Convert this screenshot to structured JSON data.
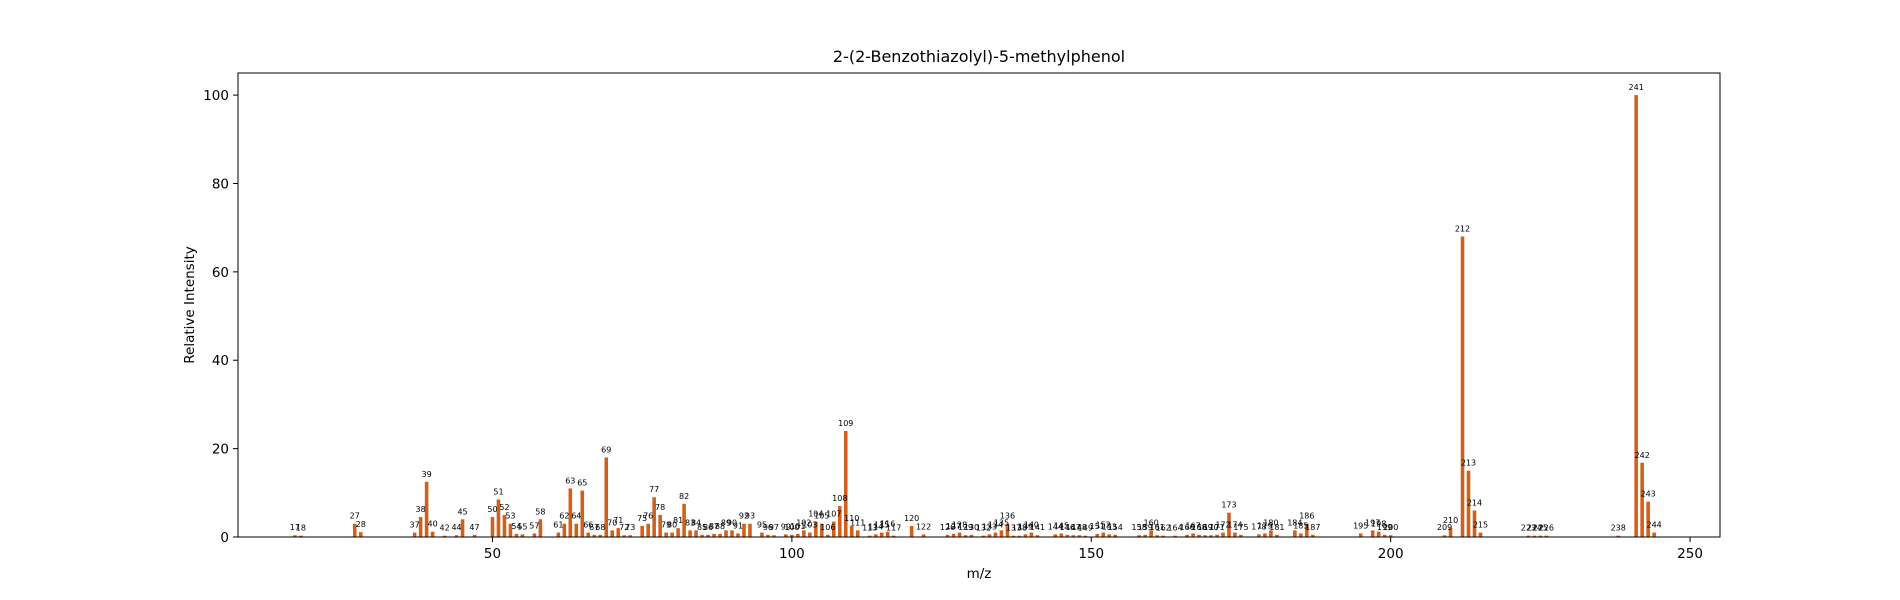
{
  "chart_data": {
    "type": "bar",
    "title": "2-(2-Benzothiazolyl)-5-methylphenol",
    "xlabel": "m/z",
    "ylabel": "Relative Intensity",
    "xlim": [
      7.5,
      255
    ],
    "ylim": [
      0,
      105
    ],
    "xticks": [
      50,
      100,
      150,
      200,
      250
    ],
    "yticks": [
      0,
      20,
      40,
      60,
      80,
      100
    ],
    "bar_color": "#d2601a",
    "peaks": [
      {
        "mz": 17,
        "intensity": 0.4,
        "label": "17"
      },
      {
        "mz": 18,
        "intensity": 0.3,
        "label": "18"
      },
      {
        "mz": 27,
        "intensity": 3.0,
        "label": "27"
      },
      {
        "mz": 28,
        "intensity": 1.1,
        "label": "28"
      },
      {
        "mz": 37,
        "intensity": 1.0,
        "label": "37"
      },
      {
        "mz": 38,
        "intensity": 4.5,
        "label": "38"
      },
      {
        "mz": 39,
        "intensity": 12.5,
        "label": "39"
      },
      {
        "mz": 40,
        "intensity": 1.2,
        "label": "40"
      },
      {
        "mz": 42,
        "intensity": 0.3,
        "label": "42"
      },
      {
        "mz": 44,
        "intensity": 0.4,
        "label": "44"
      },
      {
        "mz": 45,
        "intensity": 4.0,
        "label": "45"
      },
      {
        "mz": 47,
        "intensity": 0.5,
        "label": "47"
      },
      {
        "mz": 50,
        "intensity": 4.5,
        "label": "50"
      },
      {
        "mz": 51,
        "intensity": 8.5,
        "label": "51"
      },
      {
        "mz": 52,
        "intensity": 5.0,
        "label": "52"
      },
      {
        "mz": 53,
        "intensity": 3.0,
        "label": "53"
      },
      {
        "mz": 54,
        "intensity": 0.7,
        "label": "54"
      },
      {
        "mz": 55,
        "intensity": 0.6,
        "label": "55"
      },
      {
        "mz": 57,
        "intensity": 0.8,
        "label": "57"
      },
      {
        "mz": 58,
        "intensity": 4.0,
        "label": "58"
      },
      {
        "mz": 61,
        "intensity": 1.0,
        "label": "61"
      },
      {
        "mz": 62,
        "intensity": 3.0,
        "label": "62"
      },
      {
        "mz": 63,
        "intensity": 11.0,
        "label": "63"
      },
      {
        "mz": 64,
        "intensity": 3.0,
        "label": "64"
      },
      {
        "mz": 65,
        "intensity": 10.5,
        "label": "65"
      },
      {
        "mz": 66,
        "intensity": 1.0,
        "label": "66"
      },
      {
        "mz": 67,
        "intensity": 0.5,
        "label": "67"
      },
      {
        "mz": 68,
        "intensity": 0.5,
        "label": "68"
      },
      {
        "mz": 69,
        "intensity": 18.0,
        "label": "69"
      },
      {
        "mz": 70,
        "intensity": 1.5,
        "label": "70"
      },
      {
        "mz": 71,
        "intensity": 2.0,
        "label": "71"
      },
      {
        "mz": 72,
        "intensity": 0.4,
        "label": "72"
      },
      {
        "mz": 73,
        "intensity": 0.4,
        "label": "73"
      },
      {
        "mz": 75,
        "intensity": 2.5,
        "label": "75"
      },
      {
        "mz": 76,
        "intensity": 3.0,
        "label": "76"
      },
      {
        "mz": 77,
        "intensity": 9.0,
        "label": "77"
      },
      {
        "mz": 78,
        "intensity": 5.0,
        "label": "78"
      },
      {
        "mz": 79,
        "intensity": 1.0,
        "label": "79"
      },
      {
        "mz": 80,
        "intensity": 1.0,
        "label": "80"
      },
      {
        "mz": 81,
        "intensity": 2.0,
        "label": "81"
      },
      {
        "mz": 82,
        "intensity": 7.5,
        "label": "82"
      },
      {
        "mz": 83,
        "intensity": 1.5,
        "label": "83"
      },
      {
        "mz": 84,
        "intensity": 1.5,
        "label": "84"
      },
      {
        "mz": 85,
        "intensity": 0.5,
        "label": "85"
      },
      {
        "mz": 86,
        "intensity": 0.5,
        "label": "86"
      },
      {
        "mz": 87,
        "intensity": 0.7,
        "label": "87"
      },
      {
        "mz": 88,
        "intensity": 0.7,
        "label": "88"
      },
      {
        "mz": 89,
        "intensity": 1.5,
        "label": "89"
      },
      {
        "mz": 90,
        "intensity": 1.5,
        "label": "90"
      },
      {
        "mz": 91,
        "intensity": 0.8,
        "label": "91"
      },
      {
        "mz": 92,
        "intensity": 3.0,
        "label": "92"
      },
      {
        "mz": 93,
        "intensity": 3.0,
        "label": "93"
      },
      {
        "mz": 95,
        "intensity": 1.0,
        "label": "95"
      },
      {
        "mz": 96,
        "intensity": 0.5,
        "label": "96"
      },
      {
        "mz": 97,
        "intensity": 0.4,
        "label": "97"
      },
      {
        "mz": 99,
        "intensity": 0.6,
        "label": "99"
      },
      {
        "mz": 100,
        "intensity": 0.5,
        "label": "100"
      },
      {
        "mz": 101,
        "intensity": 0.7,
        "label": "101"
      },
      {
        "mz": 102,
        "intensity": 1.5,
        "label": "102"
      },
      {
        "mz": 103,
        "intensity": 1.0,
        "label": "103"
      },
      {
        "mz": 104,
        "intensity": 3.5,
        "label": "104"
      },
      {
        "mz": 105,
        "intensity": 3.0,
        "label": "105"
      },
      {
        "mz": 106,
        "intensity": 0.5,
        "label": "106"
      },
      {
        "mz": 107,
        "intensity": 3.5,
        "label": "107"
      },
      {
        "mz": 108,
        "intensity": 7.0,
        "label": "108"
      },
      {
        "mz": 109,
        "intensity": 24.0,
        "label": "109"
      },
      {
        "mz": 110,
        "intensity": 2.5,
        "label": "110"
      },
      {
        "mz": 111,
        "intensity": 1.5,
        "label": "111"
      },
      {
        "mz": 113,
        "intensity": 0.3,
        "label": "113"
      },
      {
        "mz": 114,
        "intensity": 0.6,
        "label": "114"
      },
      {
        "mz": 115,
        "intensity": 1.0,
        "label": "115"
      },
      {
        "mz": 116,
        "intensity": 1.2,
        "label": "116"
      },
      {
        "mz": 117,
        "intensity": 0.3,
        "label": "117"
      },
      {
        "mz": 120,
        "intensity": 2.5,
        "label": "120"
      },
      {
        "mz": 122,
        "intensity": 0.6,
        "label": "122"
      },
      {
        "mz": 126,
        "intensity": 0.5,
        "label": "126"
      },
      {
        "mz": 127,
        "intensity": 0.7,
        "label": "127"
      },
      {
        "mz": 128,
        "intensity": 1.0,
        "label": "128"
      },
      {
        "mz": 129,
        "intensity": 0.4,
        "label": "129"
      },
      {
        "mz": 130,
        "intensity": 0.5,
        "label": "130"
      },
      {
        "mz": 132,
        "intensity": 0.3,
        "label": "132"
      },
      {
        "mz": 133,
        "intensity": 0.6,
        "label": "133"
      },
      {
        "mz": 134,
        "intensity": 1.0,
        "label": "134"
      },
      {
        "mz": 135,
        "intensity": 1.5,
        "label": "135"
      },
      {
        "mz": 136,
        "intensity": 3.0,
        "label": "136"
      },
      {
        "mz": 137,
        "intensity": 0.3,
        "label": "137"
      },
      {
        "mz": 138,
        "intensity": 0.3,
        "label": "138"
      },
      {
        "mz": 139,
        "intensity": 0.6,
        "label": "139"
      },
      {
        "mz": 140,
        "intensity": 1.0,
        "label": "140"
      },
      {
        "mz": 141,
        "intensity": 0.4,
        "label": "141"
      },
      {
        "mz": 144,
        "intensity": 0.6,
        "label": "144"
      },
      {
        "mz": 145,
        "intensity": 0.8,
        "label": "145"
      },
      {
        "mz": 146,
        "intensity": 0.5,
        "label": "146"
      },
      {
        "mz": 147,
        "intensity": 0.4,
        "label": "147"
      },
      {
        "mz": 148,
        "intensity": 0.4,
        "label": "148"
      },
      {
        "mz": 149,
        "intensity": 0.3,
        "label": "149"
      },
      {
        "mz": 151,
        "intensity": 0.7,
        "label": "151"
      },
      {
        "mz": 152,
        "intensity": 1.0,
        "label": "152"
      },
      {
        "mz": 153,
        "intensity": 0.6,
        "label": "153"
      },
      {
        "mz": 154,
        "intensity": 0.5,
        "label": "154"
      },
      {
        "mz": 158,
        "intensity": 0.4,
        "label": "158"
      },
      {
        "mz": 159,
        "intensity": 0.5,
        "label": "159"
      },
      {
        "mz": 160,
        "intensity": 1.5,
        "label": "160"
      },
      {
        "mz": 161,
        "intensity": 0.4,
        "label": "161"
      },
      {
        "mz": 162,
        "intensity": 0.3,
        "label": "162"
      },
      {
        "mz": 164,
        "intensity": 0.3,
        "label": "164"
      },
      {
        "mz": 166,
        "intensity": 0.5,
        "label": "166"
      },
      {
        "mz": 167,
        "intensity": 0.8,
        "label": "167"
      },
      {
        "mz": 168,
        "intensity": 0.5,
        "label": "168"
      },
      {
        "mz": 169,
        "intensity": 0.4,
        "label": "169"
      },
      {
        "mz": 170,
        "intensity": 0.4,
        "label": "170"
      },
      {
        "mz": 171,
        "intensity": 0.5,
        "label": "171"
      },
      {
        "mz": 172,
        "intensity": 1.0,
        "label": "172"
      },
      {
        "mz": 173,
        "intensity": 5.5,
        "label": "173"
      },
      {
        "mz": 174,
        "intensity": 1.0,
        "label": "174"
      },
      {
        "mz": 175,
        "intensity": 0.5,
        "label": "175"
      },
      {
        "mz": 178,
        "intensity": 0.6,
        "label": "178"
      },
      {
        "mz": 179,
        "intensity": 0.8,
        "label": "179"
      },
      {
        "mz": 180,
        "intensity": 1.5,
        "label": "180"
      },
      {
        "mz": 181,
        "intensity": 0.5,
        "label": "181"
      },
      {
        "mz": 184,
        "intensity": 1.5,
        "label": "184"
      },
      {
        "mz": 185,
        "intensity": 0.8,
        "label": "185"
      },
      {
        "mz": 186,
        "intensity": 3.0,
        "label": "186"
      },
      {
        "mz": 187,
        "intensity": 0.5,
        "label": "187"
      },
      {
        "mz": 195,
        "intensity": 0.8,
        "label": "195"
      },
      {
        "mz": 197,
        "intensity": 1.5,
        "label": "197"
      },
      {
        "mz": 198,
        "intensity": 1.2,
        "label": "198"
      },
      {
        "mz": 199,
        "intensity": 0.5,
        "label": "199"
      },
      {
        "mz": 200,
        "intensity": 0.4,
        "label": "200"
      },
      {
        "mz": 209,
        "intensity": 0.4,
        "label": "209"
      },
      {
        "mz": 210,
        "intensity": 2.0,
        "label": "210"
      },
      {
        "mz": 212,
        "intensity": 68.0,
        "label": "212"
      },
      {
        "mz": 213,
        "intensity": 15.0,
        "label": "213"
      },
      {
        "mz": 214,
        "intensity": 6.0,
        "label": "214"
      },
      {
        "mz": 215,
        "intensity": 1.0,
        "label": "215"
      },
      {
        "mz": 223,
        "intensity": 0.3,
        "label": "223"
      },
      {
        "mz": 224,
        "intensity": 0.3,
        "label": "224"
      },
      {
        "mz": 225,
        "intensity": 0.3,
        "label": "225"
      },
      {
        "mz": 226,
        "intensity": 0.3,
        "label": "226"
      },
      {
        "mz": 238,
        "intensity": 0.3,
        "label": "238"
      },
      {
        "mz": 241,
        "intensity": 100.0,
        "label": "241"
      },
      {
        "mz": 242,
        "intensity": 16.8,
        "label": "242"
      },
      {
        "mz": 243,
        "intensity": 8.0,
        "label": "243"
      },
      {
        "mz": 244,
        "intensity": 1.0,
        "label": "244"
      }
    ]
  }
}
